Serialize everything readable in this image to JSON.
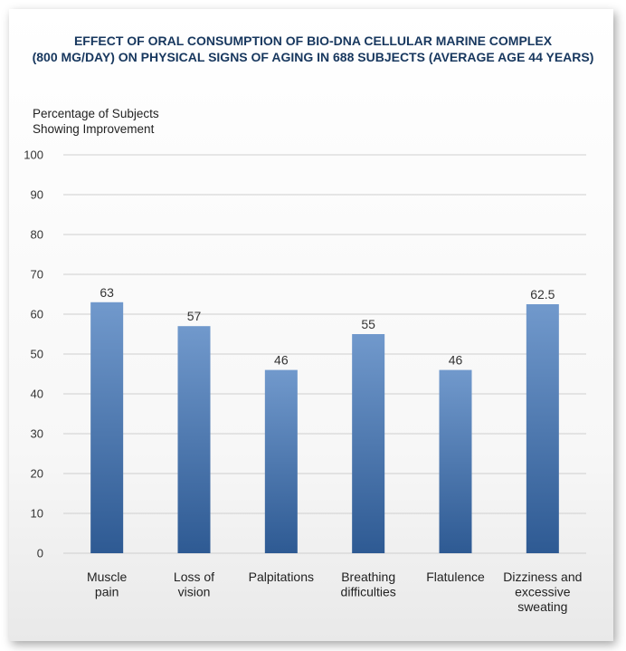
{
  "chart_data": {
    "type": "bar",
    "title_lines": [
      "EFFECT OF ORAL CONSUMPTION OF BIO-DNA CELLULAR MARINE COMPLEX",
      "(800 MG/DAY) ON PHYSICAL SIGNS OF AGING IN 688 SUBJECTS (AVERAGE AGE 44 YEARS)"
    ],
    "ylabel_lines": [
      "Percentage of Subjects",
      "Showing Improvement"
    ],
    "xlabel": "",
    "categories": [
      [
        "Muscle",
        "pain"
      ],
      [
        "Loss of",
        "vision"
      ],
      [
        "Palpitations"
      ],
      [
        "Breathing",
        "difficulties"
      ],
      [
        "Flatulence"
      ],
      [
        "Dizziness and",
        "excessive",
        "sweating"
      ]
    ],
    "values": [
      63,
      57,
      46,
      55,
      46,
      62.5
    ],
    "value_labels": [
      "63",
      "57",
      "46",
      "55",
      "46",
      "62.5"
    ],
    "ylim": [
      0,
      100
    ],
    "yticks": [
      0,
      10,
      20,
      30,
      40,
      50,
      60,
      70,
      80,
      90,
      100
    ],
    "grid": true,
    "bar_color_top": "#7199cc",
    "bar_color_bottom": "#2e5a93",
    "grid_color": "#cfcfcf"
  }
}
